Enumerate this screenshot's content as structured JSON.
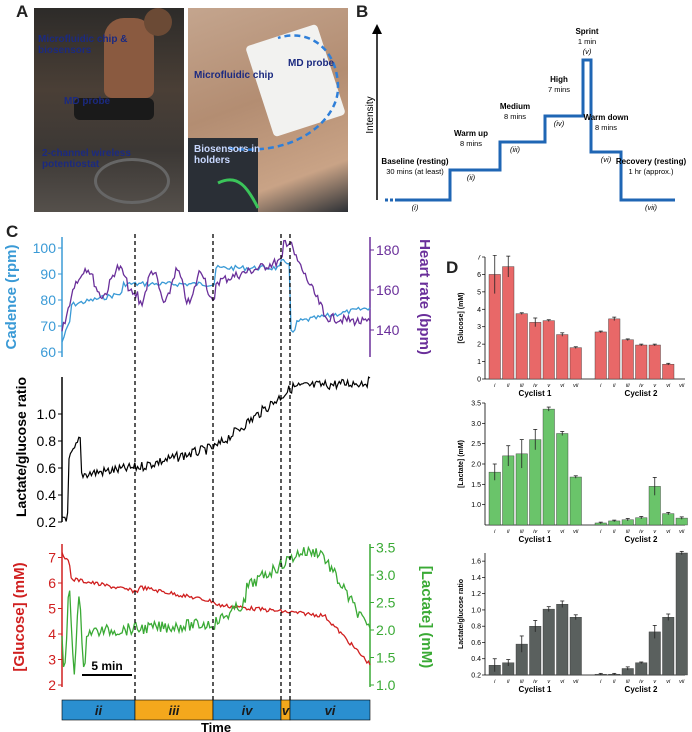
{
  "panels": {
    "a": "A",
    "b": "B",
    "c": "C",
    "d": "D"
  },
  "photo_left": {
    "labels": [
      "Microfluidic chip & biosensors",
      "MD probe",
      "2-channel wireless potentiostat"
    ]
  },
  "photo_right": {
    "labels": [
      "Microfluidic chip",
      "MD probe",
      "Biosensors in holders"
    ]
  },
  "protocol": {
    "axis_label": "Intensity",
    "stages": [
      {
        "name": "Baseline (resting)",
        "duration": "30 mins (at least)",
        "roman": "(i)",
        "level": 0
      },
      {
        "name": "Warm up",
        "duration": "8 mins",
        "roman": "(ii)",
        "level": 1
      },
      {
        "name": "Medium",
        "duration": "8 mins",
        "roman": "(iii)",
        "level": 2
      },
      {
        "name": "High",
        "duration": "7 mins",
        "roman": "(iv)",
        "level": 3
      },
      {
        "name": "Sprint",
        "duration": "1 min",
        "roman": "(v)",
        "level": 5
      },
      {
        "name": "Warm down",
        "duration": "8 mins",
        "roman": "(vi)",
        "level": 2
      },
      {
        "name": "Recovery (resting)",
        "duration": "1 hr (approx.)",
        "roman": "(vii)",
        "level": 0
      }
    ]
  },
  "panel_c": {
    "top": {
      "left_label": "Cadence (rpm)",
      "left_ticks": [
        "60",
        "70",
        "80",
        "90",
        "100"
      ],
      "right_label": "Heart rate (bpm)",
      "right_ticks": [
        "140",
        "160",
        "180"
      ],
      "cadence_color": "#3a9ad6",
      "hr_color": "#6a2f9a"
    },
    "mid": {
      "label": "Lactate/glucose ratio",
      "ticks": [
        "0.2",
        "0.4",
        "0.6",
        "0.8",
        "1.0"
      ]
    },
    "bottom": {
      "left_label": "[Glucose] (mM)",
      "left_ticks": [
        "2",
        "3",
        "4",
        "5",
        "6",
        "7"
      ],
      "right_label": "[Lactate] (mM)",
      "right_ticks": [
        "1.0",
        "1.5",
        "2.0",
        "2.5",
        "3.0",
        "3.5"
      ],
      "glucose_color": "#d02020",
      "lactate_color": "#3aaa35",
      "scalebar": "5 min"
    },
    "time_bar": [
      {
        "label": "ii",
        "color": "#2a8fd0"
      },
      {
        "label": "iii",
        "color": "#f4a81c"
      },
      {
        "label": "iv",
        "color": "#2a8fd0"
      },
      {
        "label": "v",
        "color": "#f4a81c"
      },
      {
        "label": "vi",
        "color": "#2a8fd0"
      }
    ],
    "xlabel": "Time"
  },
  "chart_data": [
    {
      "type": "bar",
      "ylabel": "[Glucose] (mM)",
      "ylim": [
        0,
        7
      ],
      "yticks": [
        "0",
        "1",
        "2",
        "3",
        "4",
        "5",
        "6",
        "7"
      ],
      "categories": [
        "i",
        "ii",
        "iii",
        "iv",
        "v",
        "vi",
        "vii"
      ],
      "groups": [
        {
          "name": "Cyclist 1",
          "values": [
            6.0,
            6.45,
            3.75,
            3.25,
            3.35,
            2.55,
            1.8
          ],
          "errors": [
            1.1,
            0.6,
            0.05,
            0.25,
            0.05,
            0.1,
            0.05
          ]
        },
        {
          "name": "Cyclist 2",
          "values": [
            2.7,
            3.45,
            2.25,
            1.95,
            1.95,
            0.85,
            0.0
          ],
          "errors": [
            0.05,
            0.1,
            0.05,
            0.05,
            0.05,
            0.05,
            0.0
          ]
        }
      ],
      "color": "#e86868"
    },
    {
      "type": "bar",
      "ylabel": "[Lactate] (mM)",
      "ylim": [
        0.5,
        3.5
      ],
      "yticks": [
        "1.0",
        "1.5",
        "2.0",
        "2.5",
        "3.0",
        "3.5"
      ],
      "categories": [
        "i",
        "ii",
        "iii",
        "iv",
        "v",
        "vi",
        "vii"
      ],
      "groups": [
        {
          "name": "Cyclist 1",
          "values": [
            1.8,
            2.2,
            2.25,
            2.6,
            3.35,
            2.75,
            1.68
          ],
          "errors": [
            0.2,
            0.25,
            0.35,
            0.25,
            0.05,
            0.05,
            0.03
          ]
        },
        {
          "name": "Cyclist 2",
          "values": [
            0.55,
            0.6,
            0.63,
            0.68,
            1.45,
            0.78,
            0.67
          ],
          "errors": [
            0.02,
            0.02,
            0.03,
            0.03,
            0.22,
            0.03,
            0.03
          ]
        }
      ],
      "color": "#6ac46a"
    },
    {
      "type": "bar",
      "ylabel": "Lactate/glucose ratio",
      "ylim": [
        0.2,
        1.7
      ],
      "yticks": [
        "0.2",
        "0.4",
        "0.6",
        "0.8",
        "1.0",
        "1.2",
        "1.4",
        "1.6"
      ],
      "categories": [
        "i",
        "ii",
        "iii",
        "iv",
        "v",
        "vi",
        "vii"
      ],
      "groups": [
        {
          "name": "Cyclist 1",
          "values": [
            0.32,
            0.35,
            0.58,
            0.8,
            1.01,
            1.07,
            0.91
          ],
          "errors": [
            0.08,
            0.04,
            0.1,
            0.07,
            0.03,
            0.04,
            0.03
          ]
        },
        {
          "name": "Cyclist 2",
          "values": [
            0.21,
            0.21,
            0.28,
            0.35,
            0.73,
            0.91,
            1.7
          ],
          "errors": [
            0.01,
            0.01,
            0.02,
            0.01,
            0.08,
            0.04,
            0.02
          ]
        }
      ],
      "color": "#5a605e"
    }
  ]
}
